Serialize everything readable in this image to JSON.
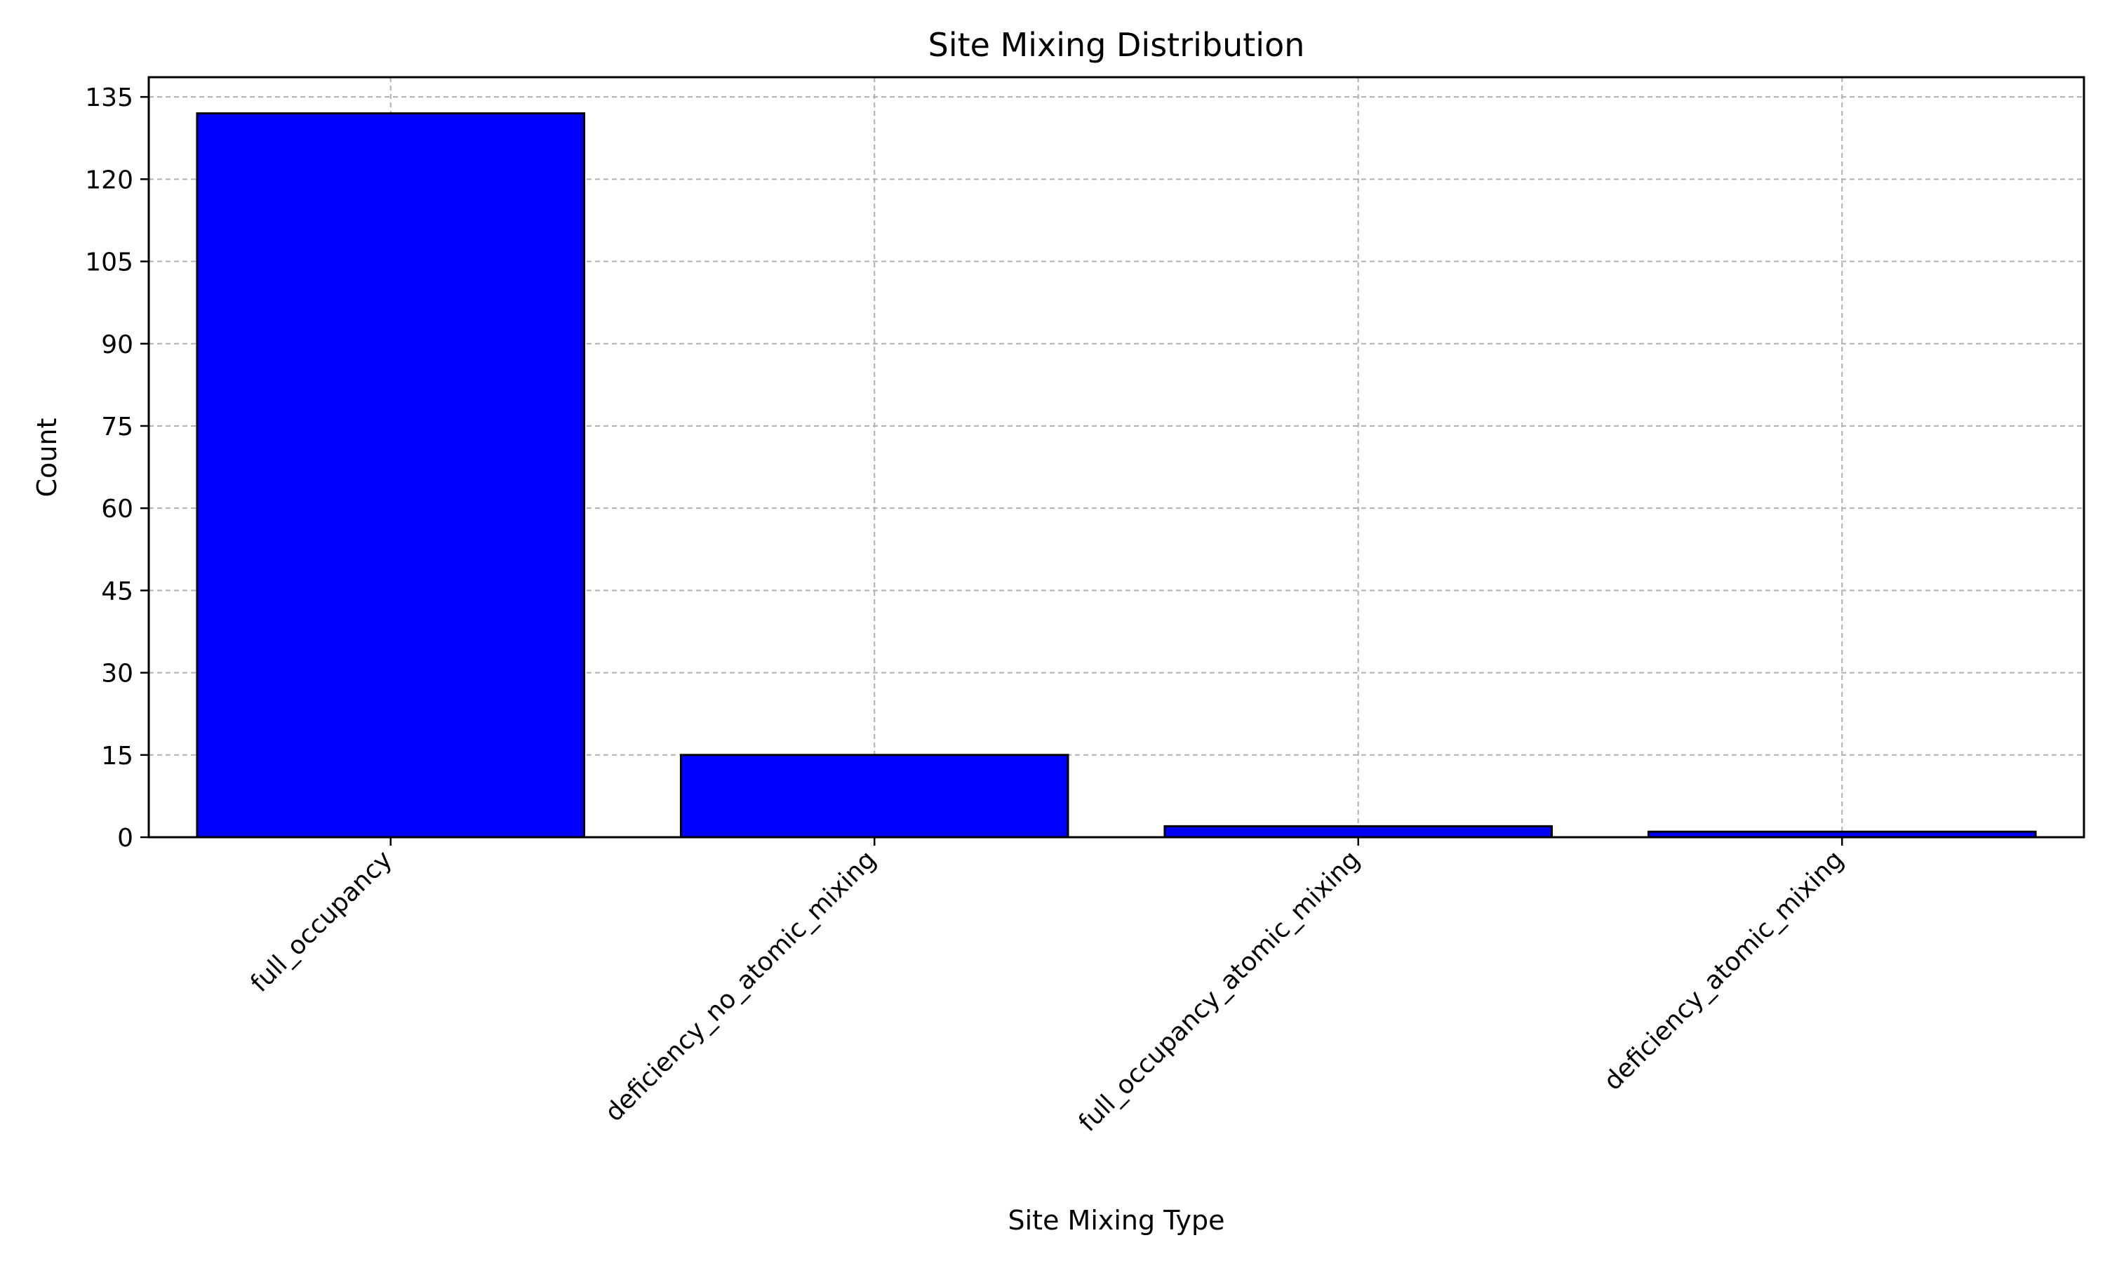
{
  "chart_data": {
    "type": "bar",
    "title": "Site Mixing Distribution",
    "xlabel": "Site Mixing Type",
    "ylabel": "Count",
    "categories": [
      "full_occupancy",
      "deficiency_no_atomic_mixing",
      "full_occupancy_atomic_mixing",
      "deficiency_atomic_mixing"
    ],
    "values": [
      132,
      15,
      2,
      1
    ],
    "ylim": [
      0,
      138.6
    ],
    "yticks": [
      0,
      15,
      30,
      45,
      60,
      75,
      90,
      105,
      120,
      135
    ],
    "grid": true,
    "bar_color": "#0000ff",
    "bar_edge_color": "#000000",
    "xtick_rotation_deg": 45
  }
}
